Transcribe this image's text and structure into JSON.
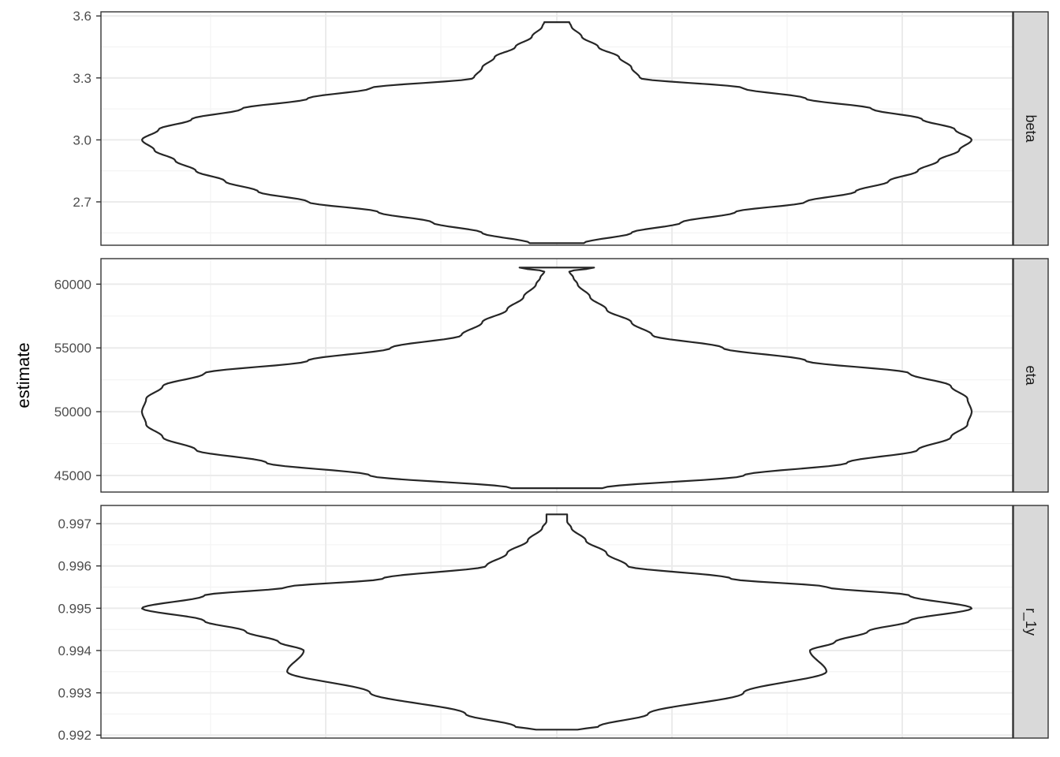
{
  "chart_data": {
    "type": "violin",
    "ylabel": "estimate",
    "xlabel": "",
    "grid": true,
    "panels": [
      {
        "strip": "beta",
        "ylim": [
          2.49,
          3.62
        ],
        "yticks": [
          2.7,
          3.0,
          3.3,
          3.6
        ],
        "tick_labels": [
          "2.7",
          "3.0",
          "3.3",
          "3.6"
        ],
        "violin_range": [
          2.5,
          3.57
        ],
        "density_profile": [
          [
            2.5,
            0.065
          ],
          [
            2.55,
            0.18
          ],
          [
            2.6,
            0.3
          ],
          [
            2.65,
            0.43
          ],
          [
            2.7,
            0.6
          ],
          [
            2.75,
            0.72
          ],
          [
            2.8,
            0.8
          ],
          [
            2.85,
            0.87
          ],
          [
            2.9,
            0.92
          ],
          [
            2.95,
            0.97
          ],
          [
            3.0,
            1.0
          ],
          [
            3.05,
            0.96
          ],
          [
            3.1,
            0.88
          ],
          [
            3.15,
            0.76
          ],
          [
            3.2,
            0.6
          ],
          [
            3.25,
            0.45
          ],
          [
            3.3,
            0.2
          ],
          [
            3.35,
            0.18
          ],
          [
            3.4,
            0.15
          ],
          [
            3.45,
            0.1
          ],
          [
            3.5,
            0.06
          ],
          [
            3.55,
            0.035
          ],
          [
            3.57,
            0.03
          ]
        ]
      },
      {
        "strip": "eta",
        "ylim": [
          43700,
          62000
        ],
        "yticks": [
          45000,
          50000,
          55000,
          60000
        ],
        "tick_labels": [
          "45000",
          "50000",
          "55000",
          "60000"
        ],
        "violin_range": [
          44000,
          61300
        ],
        "density_profile": [
          [
            44000,
            0.11
          ],
          [
            45000,
            0.45
          ],
          [
            46000,
            0.7
          ],
          [
            47000,
            0.87
          ],
          [
            48000,
            0.95
          ],
          [
            49000,
            0.99
          ],
          [
            50000,
            1.0
          ],
          [
            51000,
            0.99
          ],
          [
            52000,
            0.95
          ],
          [
            53000,
            0.85
          ],
          [
            54000,
            0.6
          ],
          [
            55000,
            0.4
          ],
          [
            56000,
            0.23
          ],
          [
            57000,
            0.18
          ],
          [
            58000,
            0.12
          ],
          [
            59000,
            0.08
          ],
          [
            60000,
            0.05
          ],
          [
            60500,
            0.04
          ],
          [
            61000,
            0.03
          ],
          [
            61300,
            0.09
          ]
        ]
      },
      {
        "strip": "r_1y",
        "ylim": [
          0.99193,
          0.99743
        ],
        "yticks": [
          0.992,
          0.993,
          0.994,
          0.995,
          0.996,
          0.997
        ],
        "tick_labels": [
          "0.992",
          "0.993",
          "0.994",
          "0.995",
          "0.996",
          "0.997"
        ],
        "violin_range": [
          0.99213,
          0.99722
        ],
        "density_profile": [
          [
            0.99213,
            0.05
          ],
          [
            0.9922,
            0.1
          ],
          [
            0.9925,
            0.22
          ],
          [
            0.993,
            0.45
          ],
          [
            0.9935,
            0.65
          ],
          [
            0.994,
            0.61
          ],
          [
            0.9942,
            0.67
          ],
          [
            0.99445,
            0.75
          ],
          [
            0.9947,
            0.85
          ],
          [
            0.995,
            1.0
          ],
          [
            0.9953,
            0.85
          ],
          [
            0.9955,
            0.65
          ],
          [
            0.9957,
            0.42
          ],
          [
            0.996,
            0.17
          ],
          [
            0.9963,
            0.12
          ],
          [
            0.9966,
            0.07
          ],
          [
            0.9969,
            0.035
          ],
          [
            0.99705,
            0.025
          ],
          [
            0.9971,
            0.025
          ],
          [
            0.99722,
            0.025
          ]
        ]
      }
    ]
  }
}
